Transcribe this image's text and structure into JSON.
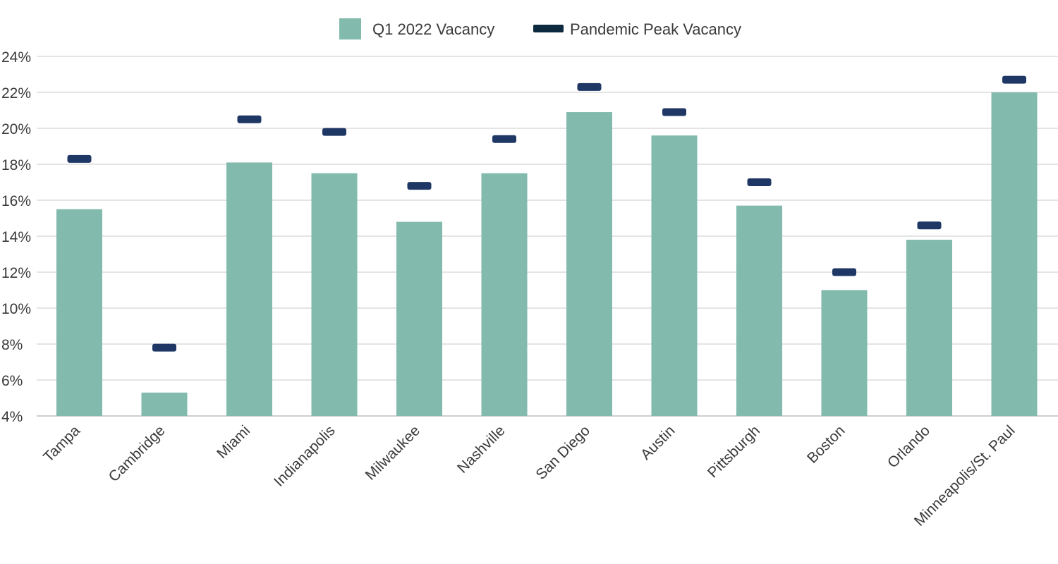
{
  "colors": {
    "q1_bar": "#82BAAD",
    "peak_marker": "#1F3765",
    "peak_legend": "#0E2A3F",
    "grid": "#DCDCDC",
    "text": "#3A3A3A"
  },
  "chart_data": {
    "type": "bar",
    "title": "",
    "xlabel": "",
    "ylabel": "",
    "ylim": [
      4,
      24
    ],
    "yticks": [
      "4%",
      "6%",
      "8%",
      "10%",
      "12%",
      "14%",
      "16%",
      "18%",
      "20%",
      "22%",
      "24%"
    ],
    "ytick_values": [
      4,
      6,
      8,
      10,
      12,
      14,
      16,
      18,
      20,
      22,
      24
    ],
    "grid": true,
    "legend_position": "top-center",
    "categories": [
      "Tampa",
      "Cambridge",
      "Miami",
      "Indianapolis",
      "Milwaukee",
      "Nashville",
      "San Diego",
      "Austin",
      "Pittsburgh",
      "Boston",
      "Orlando",
      "Minneapolis/St. Paul"
    ],
    "series": [
      {
        "name": "Q1 2022 Vacancy",
        "kind": "bar",
        "values": [
          15.5,
          5.3,
          18.1,
          17.5,
          14.8,
          17.5,
          20.9,
          19.6,
          15.7,
          11.0,
          13.8,
          22.0
        ]
      },
      {
        "name": "Pandemic Peak Vacancy",
        "kind": "marker",
        "values": [
          18.3,
          7.8,
          20.5,
          19.8,
          16.8,
          19.4,
          22.3,
          20.9,
          17.0,
          12.0,
          14.6,
          22.7
        ]
      }
    ]
  }
}
